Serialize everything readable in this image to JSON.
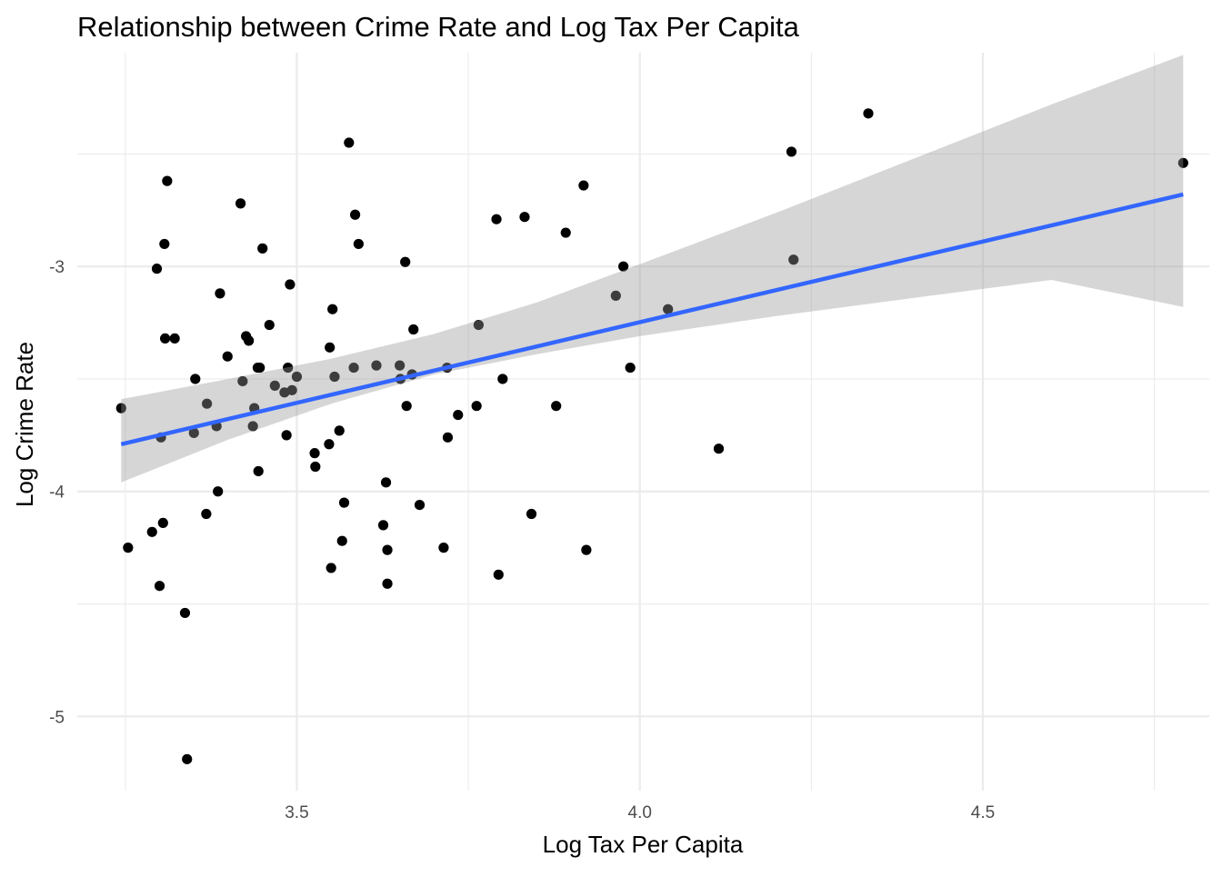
{
  "chart_data": {
    "type": "scatter",
    "title": "Relationship between Crime Rate and Log Tax Per Capita",
    "xlabel": "Log Tax Per Capita",
    "ylabel": "Log Crime Rate",
    "xlim": [
      3.18,
      4.83
    ],
    "ylim": [
      -5.33,
      -2.05
    ],
    "x_ticks": [
      3.5,
      4.0,
      4.5
    ],
    "x_tick_labels": [
      "3.5",
      "4.0",
      "4.5"
    ],
    "y_ticks": [
      -5,
      -4,
      -3
    ],
    "y_tick_labels": [
      "-5",
      "-4",
      "-3"
    ],
    "grid": true,
    "legend": "none",
    "colors": {
      "points": "#000000",
      "fit_line": "#3366ff",
      "confidence_band": "#d3d3d3",
      "grid": "#ebebeb"
    },
    "points": [
      {
        "x": 3.244,
        "y": -3.63
      },
      {
        "x": 3.254,
        "y": -4.25
      },
      {
        "x": 3.289,
        "y": -4.18
      },
      {
        "x": 3.296,
        "y": -3.01
      },
      {
        "x": 3.3,
        "y": -4.42
      },
      {
        "x": 3.302,
        "y": -3.76
      },
      {
        "x": 3.305,
        "y": -4.14
      },
      {
        "x": 3.307,
        "y": -2.9
      },
      {
        "x": 3.308,
        "y": -3.32
      },
      {
        "x": 3.311,
        "y": -2.62
      },
      {
        "x": 3.322,
        "y": -3.32
      },
      {
        "x": 3.337,
        "y": -4.54
      },
      {
        "x": 3.34,
        "y": -5.19
      },
      {
        "x": 3.35,
        "y": -3.74
      },
      {
        "x": 3.352,
        "y": -3.5
      },
      {
        "x": 3.368,
        "y": -4.1
      },
      {
        "x": 3.369,
        "y": -3.61
      },
      {
        "x": 3.383,
        "y": -3.71
      },
      {
        "x": 3.385,
        "y": -4.0
      },
      {
        "x": 3.388,
        "y": -3.12
      },
      {
        "x": 3.399,
        "y": -3.4
      },
      {
        "x": 3.418,
        "y": -2.72
      },
      {
        "x": 3.421,
        "y": -3.51
      },
      {
        "x": 3.426,
        "y": -3.31
      },
      {
        "x": 3.43,
        "y": -3.33
      },
      {
        "x": 3.436,
        "y": -3.71
      },
      {
        "x": 3.438,
        "y": -3.63
      },
      {
        "x": 3.443,
        "y": -3.45
      },
      {
        "x": 3.444,
        "y": -3.91
      },
      {
        "x": 3.446,
        "y": -3.45
      },
      {
        "x": 3.45,
        "y": -2.92
      },
      {
        "x": 3.46,
        "y": -3.26
      },
      {
        "x": 3.468,
        "y": -3.53
      },
      {
        "x": 3.482,
        "y": -3.56
      },
      {
        "x": 3.485,
        "y": -3.75
      },
      {
        "x": 3.487,
        "y": -3.45
      },
      {
        "x": 3.49,
        "y": -3.08
      },
      {
        "x": 3.493,
        "y": -3.55
      },
      {
        "x": 3.5,
        "y": -3.49
      },
      {
        "x": 3.526,
        "y": -3.83
      },
      {
        "x": 3.527,
        "y": -3.89
      },
      {
        "x": 3.547,
        "y": -3.79
      },
      {
        "x": 3.548,
        "y": -3.36
      },
      {
        "x": 3.55,
        "y": -4.34
      },
      {
        "x": 3.552,
        "y": -3.19
      },
      {
        "x": 3.555,
        "y": -3.49
      },
      {
        "x": 3.562,
        "y": -3.73
      },
      {
        "x": 3.566,
        "y": -4.22
      },
      {
        "x": 3.569,
        "y": -4.05
      },
      {
        "x": 3.576,
        "y": -2.45
      },
      {
        "x": 3.583,
        "y": -3.45
      },
      {
        "x": 3.585,
        "y": -2.77
      },
      {
        "x": 3.59,
        "y": -2.9
      },
      {
        "x": 3.616,
        "y": -3.44
      },
      {
        "x": 3.626,
        "y": -4.15
      },
      {
        "x": 3.63,
        "y": -3.96
      },
      {
        "x": 3.632,
        "y": -4.26
      },
      {
        "x": 3.632,
        "y": -4.41
      },
      {
        "x": 3.65,
        "y": -3.44
      },
      {
        "x": 3.651,
        "y": -3.5
      },
      {
        "x": 3.658,
        "y": -2.98
      },
      {
        "x": 3.66,
        "y": -3.62
      },
      {
        "x": 3.668,
        "y": -3.48
      },
      {
        "x": 3.67,
        "y": -3.28
      },
      {
        "x": 3.679,
        "y": -4.06
      },
      {
        "x": 3.714,
        "y": -4.25
      },
      {
        "x": 3.719,
        "y": -3.45
      },
      {
        "x": 3.72,
        "y": -3.76
      },
      {
        "x": 3.735,
        "y": -3.66
      },
      {
        "x": 3.762,
        "y": -3.62
      },
      {
        "x": 3.765,
        "y": -3.26
      },
      {
        "x": 3.791,
        "y": -2.79
      },
      {
        "x": 3.794,
        "y": -4.37
      },
      {
        "x": 3.8,
        "y": -3.5
      },
      {
        "x": 3.832,
        "y": -2.78
      },
      {
        "x": 3.842,
        "y": -4.1
      },
      {
        "x": 3.878,
        "y": -3.62
      },
      {
        "x": 3.892,
        "y": -2.85
      },
      {
        "x": 3.918,
        "y": -2.64
      },
      {
        "x": 3.922,
        "y": -4.26
      },
      {
        "x": 3.965,
        "y": -3.13
      },
      {
        "x": 3.976,
        "y": -3.0
      },
      {
        "x": 3.986,
        "y": -3.45
      },
      {
        "x": 4.041,
        "y": -3.19
      },
      {
        "x": 4.115,
        "y": -3.81
      },
      {
        "x": 4.221,
        "y": -2.49
      },
      {
        "x": 4.224,
        "y": -2.97
      },
      {
        "x": 4.333,
        "y": -2.32
      },
      {
        "x": 4.792,
        "y": -2.54
      }
    ],
    "fit_line": {
      "x": [
        3.244,
        4.792
      ],
      "y": [
        -3.79,
        -2.68
      ]
    },
    "confidence_band": {
      "x": [
        3.244,
        3.4,
        3.55,
        3.7,
        3.85,
        4.0,
        4.2,
        4.4,
        4.6,
        4.792
      ],
      "upper": [
        -3.59,
        -3.5,
        -3.41,
        -3.3,
        -3.16,
        -2.99,
        -2.76,
        -2.52,
        -2.28,
        -2.06
      ],
      "lower": [
        -3.96,
        -3.77,
        -3.61,
        -3.48,
        -3.39,
        -3.31,
        -3.22,
        -3.14,
        -3.06,
        -3.18
      ]
    }
  }
}
